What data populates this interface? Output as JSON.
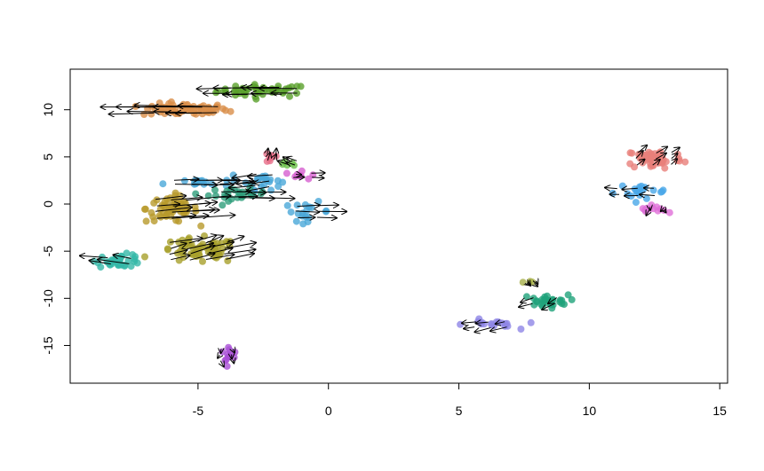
{
  "chart_data": {
    "type": "scatter",
    "title": "",
    "xlabel": "",
    "ylabel": "",
    "xlim": [
      -9.9,
      15.3
    ],
    "ylim": [
      -19.0,
      14.3
    ],
    "x_ticks": [
      -5,
      0,
      5,
      10,
      15
    ],
    "y_ticks": [
      10,
      5,
      0,
      -5,
      -10,
      -15
    ],
    "x_tick_labels": [
      "-5",
      "0",
      "5",
      "10",
      "15"
    ],
    "y_tick_labels": [
      "10",
      "5",
      "0",
      "-5",
      "-10",
      "-15"
    ],
    "grid": false,
    "legend": "none",
    "arrow_color": "#000000",
    "clusters": [
      {
        "color": "#5aa02c",
        "cx": -2.5,
        "cy": 12.0,
        "sx": 1.6,
        "sy": 0.6,
        "n": 45,
        "vx": -1.2,
        "vy": 0.0
      },
      {
        "color": "#d98e4a",
        "cx": -5.5,
        "cy": 10.0,
        "sx": 1.5,
        "sy": 0.6,
        "n": 70,
        "vx": -1.6,
        "vy": 0.0
      },
      {
        "color": "#e76f8a",
        "cx": -2.2,
        "cy": 5.0,
        "sx": 0.3,
        "sy": 0.7,
        "n": 8,
        "vx": 0.0,
        "vy": 0.6
      },
      {
        "color": "#6cbf4a",
        "cx": -1.4,
        "cy": 4.4,
        "sx": 0.3,
        "sy": 0.4,
        "n": 5,
        "vx": -0.3,
        "vy": 0.3
      },
      {
        "color": "#4aa8d8",
        "cx": -2.5,
        "cy": 2.5,
        "sx": 0.6,
        "sy": 0.9,
        "n": 20,
        "vx": -0.8,
        "vy": -0.3
      },
      {
        "color": "#d65fd0",
        "cx": -1.0,
        "cy": 3.0,
        "sx": 0.6,
        "sy": 0.4,
        "n": 8,
        "vx": 0.4,
        "vy": 0.0
      },
      {
        "color": "#4aa8d8",
        "cx": -5.0,
        "cy": 2.3,
        "sx": 1.2,
        "sy": 0.4,
        "n": 18,
        "vx": 1.2,
        "vy": 0.0
      },
      {
        "color": "#2e9e7a",
        "cx": -3.5,
        "cy": 1.0,
        "sx": 1.0,
        "sy": 0.6,
        "n": 25,
        "vx": 1.2,
        "vy": 0.0
      },
      {
        "color": "#4aa8d8",
        "cx": -0.8,
        "cy": -0.8,
        "sx": 0.8,
        "sy": 0.9,
        "n": 18,
        "vx": 0.8,
        "vy": 0.0
      },
      {
        "color": "#b89a2c",
        "cx": -6.0,
        "cy": -0.5,
        "sx": 0.9,
        "sy": 1.3,
        "n": 60,
        "vx": 1.4,
        "vy": 0.3
      },
      {
        "color": "#a8a02c",
        "cx": -5.0,
        "cy": -5.0,
        "sx": 1.4,
        "sy": 1.2,
        "n": 60,
        "vx": 0.9,
        "vy": 0.6
      },
      {
        "color": "#35b8a8",
        "cx": -8.0,
        "cy": -6.0,
        "sx": 0.8,
        "sy": 0.6,
        "n": 35,
        "vx": -0.9,
        "vy": 0.4
      },
      {
        "color": "#a94fd6",
        "cx": -3.9,
        "cy": -16.0,
        "sx": 0.4,
        "sy": 0.9,
        "n": 12,
        "vx": 0.0,
        "vy": -0.5
      },
      {
        "color": "#8f86e6",
        "cx": 6.2,
        "cy": -12.8,
        "sx": 0.9,
        "sy": 0.5,
        "n": 18,
        "vx": -0.5,
        "vy": -0.3
      },
      {
        "color": "#1fa27a",
        "cx": 8.3,
        "cy": -10.3,
        "sx": 0.8,
        "sy": 0.6,
        "n": 30,
        "vx": -0.4,
        "vy": -0.5
      },
      {
        "color": "#a8b04a",
        "cx": 7.8,
        "cy": -8.3,
        "sx": 0.3,
        "sy": 0.2,
        "n": 3,
        "vx": 0.0,
        "vy": -0.4
      },
      {
        "color": "#e8807a",
        "cx": 12.5,
        "cy": 4.8,
        "sx": 1.0,
        "sy": 1.0,
        "n": 55,
        "vx": 0.3,
        "vy": 0.6
      },
      {
        "color": "#4aa8e8",
        "cx": 11.8,
        "cy": 1.3,
        "sx": 1.0,
        "sy": 0.7,
        "n": 22,
        "vx": -0.5,
        "vy": 0.0
      },
      {
        "color": "#e06fd8",
        "cx": 12.6,
        "cy": -0.5,
        "sx": 0.6,
        "sy": 0.3,
        "n": 12,
        "vx": 0.0,
        "vy": -0.4
      }
    ]
  }
}
